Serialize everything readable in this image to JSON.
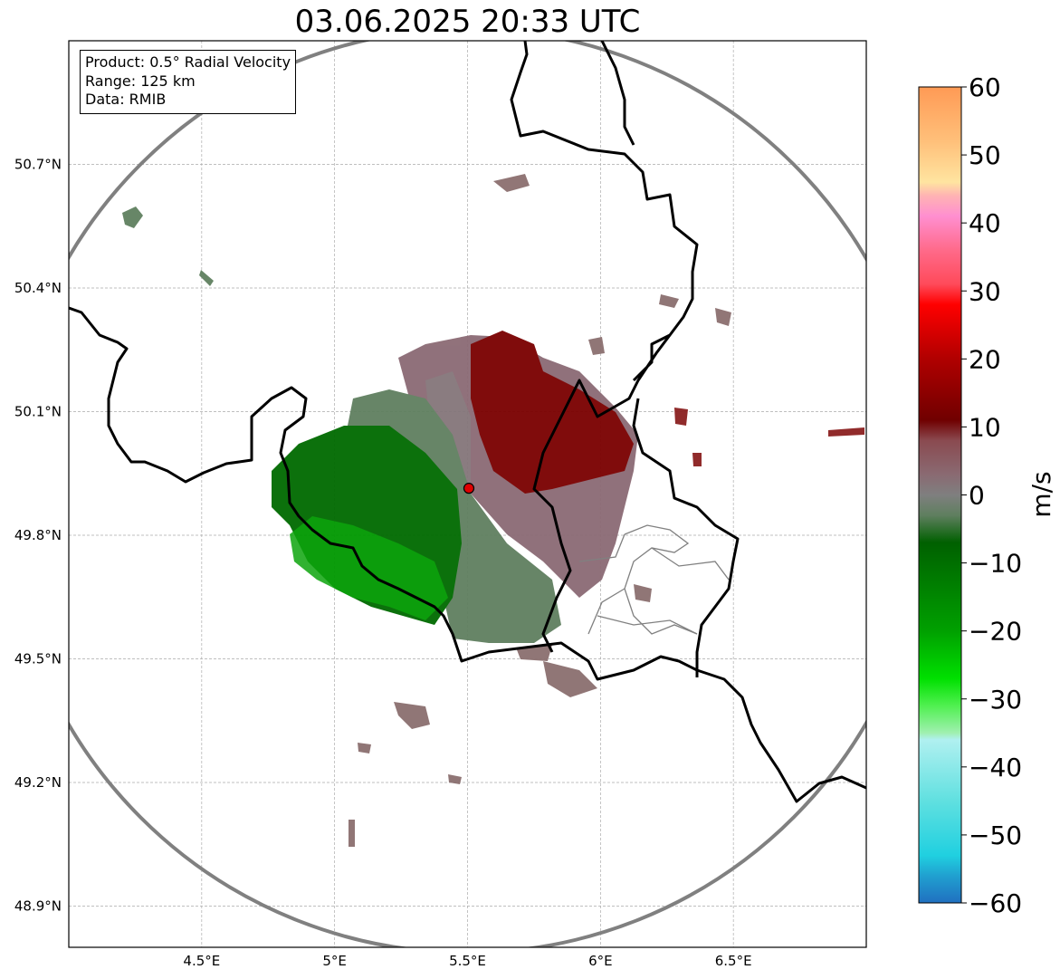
{
  "title": "03.06.2025 20:33 UTC",
  "info_box": {
    "product": "Product: 0.5° Radial Velocity",
    "range": "Range: 125 km",
    "data": "Data: RMIB"
  },
  "map": {
    "lon_range": [
      4.0,
      7.0
    ],
    "lat_range": [
      48.8,
      51.0
    ],
    "lon_ticks": [
      {
        "value": 4.5,
        "label": "4.5°E"
      },
      {
        "value": 5.0,
        "label": "5°E"
      },
      {
        "value": 5.5,
        "label": "5.5°E"
      },
      {
        "value": 6.0,
        "label": "6°E"
      },
      {
        "value": 6.5,
        "label": "6.5°E"
      }
    ],
    "lat_ticks": [
      {
        "value": 50.7,
        "label": "50.7°N"
      },
      {
        "value": 50.4,
        "label": "50.4°N"
      },
      {
        "value": 50.1,
        "label": "50.1°N"
      },
      {
        "value": 49.8,
        "label": "49.8°N"
      },
      {
        "value": 49.5,
        "label": "49.5°N"
      },
      {
        "value": 49.2,
        "label": "49.2°N"
      },
      {
        "value": 48.9,
        "label": "48.9°N"
      }
    ],
    "radar_site": {
      "lon": 5.505,
      "lat": 49.914
    },
    "gridlines": true
  },
  "colorbar": {
    "label": "m/s",
    "range": [
      -60,
      60
    ],
    "ticks": [
      60,
      50,
      40,
      30,
      20,
      10,
      0,
      -10,
      -20,
      -30,
      -40,
      -50,
      -60
    ],
    "tick_labels": [
      "60",
      "50",
      "40",
      "30",
      "20",
      "10",
      "0",
      "−10",
      "−20",
      "−30",
      "−40",
      "−50",
      "−60"
    ],
    "stops": [
      {
        "value": 60,
        "color": "#ff9a55"
      },
      {
        "value": 52,
        "color": "#ffc07a"
      },
      {
        "value": 46,
        "color": "#ffe4a0"
      },
      {
        "value": 44,
        "color": "#ffb3b3"
      },
      {
        "value": 41,
        "color": "#ff8fd0"
      },
      {
        "value": 36,
        "color": "#ff6a8a"
      },
      {
        "value": 31,
        "color": "#ff4a5a"
      },
      {
        "value": 28,
        "color": "#ff0000"
      },
      {
        "value": 20,
        "color": "#b00000"
      },
      {
        "value": 11,
        "color": "#700000"
      },
      {
        "value": 8,
        "color": "#8a4a50"
      },
      {
        "value": 3,
        "color": "#8a6a72"
      },
      {
        "value": 0,
        "color": "#7f7f7f"
      },
      {
        "value": -3,
        "color": "#5f7f5f"
      },
      {
        "value": -7,
        "color": "#006000"
      },
      {
        "value": -20,
        "color": "#00a000"
      },
      {
        "value": -27,
        "color": "#00e000"
      },
      {
        "value": -31,
        "color": "#50f050"
      },
      {
        "value": -35,
        "color": "#a0f0b0"
      },
      {
        "value": -36,
        "color": "#b0f0f0"
      },
      {
        "value": -45,
        "color": "#60e0e0"
      },
      {
        "value": -53,
        "color": "#20d0e0"
      },
      {
        "value": -56,
        "color": "#20a0d0"
      },
      {
        "value": -60,
        "color": "#2070c0"
      }
    ]
  }
}
